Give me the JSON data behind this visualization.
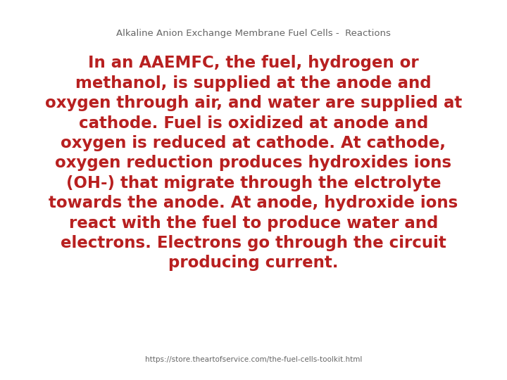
{
  "title": "Alkaline Anion Exchange Membrane Fuel Cells -  Reactions",
  "title_color": "#666666",
  "title_fontsize": 9.5,
  "body_text": "In an AAEMFC, the fuel, hydrogen or\nmethanol, is supplied at the anode and\noxygen through air, and water are supplied at\ncathode. Fuel is oxidized at anode and\noxygen is reduced at cathode. At cathode,\noxygen reduction produces hydroxides ions\n(OH-) that migrate through the elctrolyte\ntowards the anode. At anode, hydroxide ions\nreact with the fuel to produce water and\nelectrons. Electrons go through the circuit\nproducing current.",
  "body_color": "#b82020",
  "body_fontsize": 16.5,
  "footer_text": "https://store.theartofservice.com/the-fuel-cells-toolkit.html",
  "footer_color": "#666666",
  "footer_fontsize": 7.5,
  "background_color": "#ffffff",
  "fig_width": 7.2,
  "fig_height": 5.4,
  "dpi": 100
}
